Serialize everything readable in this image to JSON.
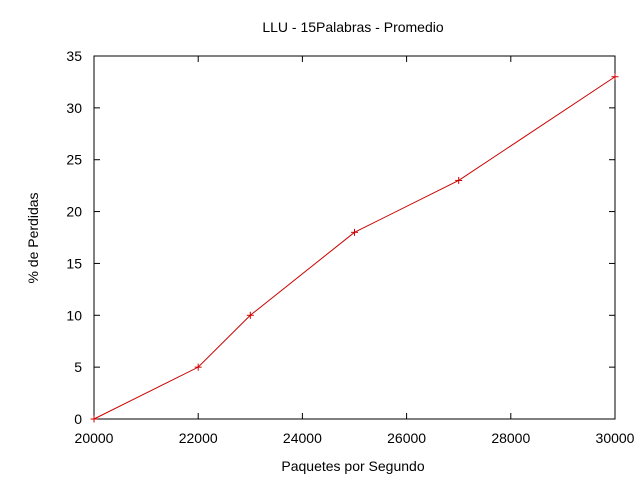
{
  "chart_data": {
    "type": "line",
    "title": "LLU - 15Palabras - Promedio",
    "xlabel": "Paquetes por Segundo",
    "ylabel": "% de Perdidas",
    "xlim": [
      20000,
      30000
    ],
    "ylim": [
      0,
      35
    ],
    "xticks": [
      "20000",
      "22000",
      "24000",
      "26000",
      "28000",
      "30000"
    ],
    "yticks": [
      "0",
      "5",
      "10",
      "15",
      "20",
      "25",
      "30",
      "35"
    ],
    "grid": false,
    "series": [
      {
        "color": "#cc0000",
        "marker": "plus",
        "x": [
          20000,
          22000,
          23000,
          25000,
          27000,
          30000
        ],
        "y": [
          0,
          5,
          10,
          18,
          23,
          33
        ]
      }
    ]
  }
}
